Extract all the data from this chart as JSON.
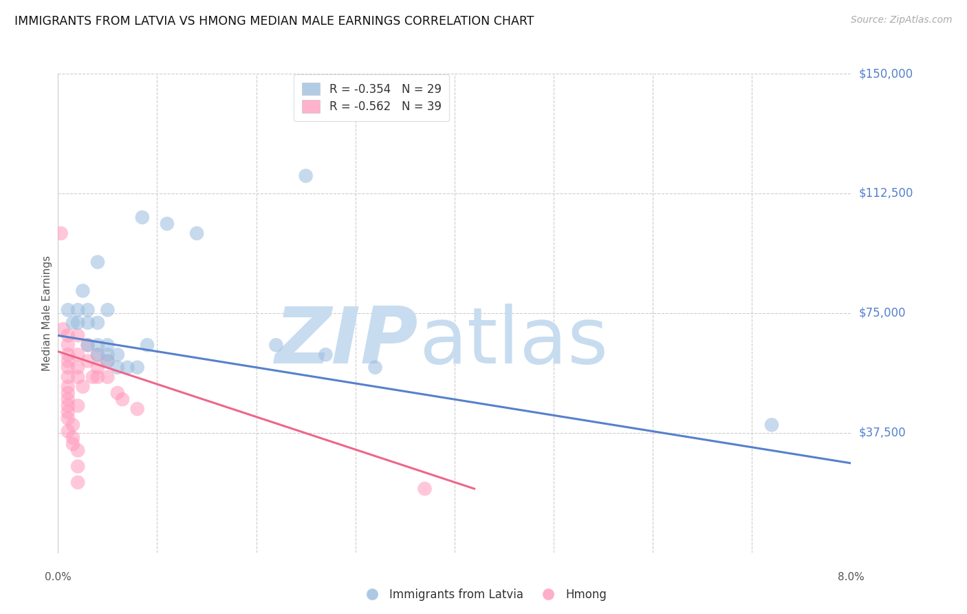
{
  "title": "IMMIGRANTS FROM LATVIA VS HMONG MEDIAN MALE EARNINGS CORRELATION CHART",
  "source": "Source: ZipAtlas.com",
  "ylabel": "Median Male Earnings",
  "y_ticks": [
    0,
    37500,
    75000,
    112500,
    150000
  ],
  "y_tick_labels": [
    "",
    "$37,500",
    "$75,000",
    "$112,500",
    "$150,000"
  ],
  "x_min": 0.0,
  "x_max": 0.08,
  "y_min": 0,
  "y_max": 150000,
  "legend_blue_r": "-0.354",
  "legend_blue_n": "29",
  "legend_pink_r": "-0.562",
  "legend_pink_n": "39",
  "legend_blue_label": "Immigrants from Latvia",
  "legend_pink_label": "Hmong",
  "blue_color": "#99BBDD",
  "pink_color": "#FF99BB",
  "blue_line_color": "#5580CC",
  "pink_line_color": "#EE6688",
  "blue_scatter": [
    [
      0.001,
      76000
    ],
    [
      0.0015,
      72000
    ],
    [
      0.002,
      76000
    ],
    [
      0.002,
      72000
    ],
    [
      0.0025,
      82000
    ],
    [
      0.003,
      76000
    ],
    [
      0.003,
      72000
    ],
    [
      0.003,
      65000
    ],
    [
      0.004,
      91000
    ],
    [
      0.004,
      72000
    ],
    [
      0.004,
      65000
    ],
    [
      0.004,
      62000
    ],
    [
      0.005,
      76000
    ],
    [
      0.005,
      65000
    ],
    [
      0.005,
      62000
    ],
    [
      0.005,
      60000
    ],
    [
      0.006,
      62000
    ],
    [
      0.006,
      58000
    ],
    [
      0.0085,
      105000
    ],
    [
      0.007,
      58000
    ],
    [
      0.008,
      58000
    ],
    [
      0.009,
      65000
    ],
    [
      0.011,
      103000
    ],
    [
      0.014,
      100000
    ],
    [
      0.025,
      118000
    ],
    [
      0.022,
      65000
    ],
    [
      0.027,
      62000
    ],
    [
      0.032,
      58000
    ],
    [
      0.072,
      40000
    ]
  ],
  "pink_scatter": [
    [
      0.0003,
      100000
    ],
    [
      0.0005,
      70000
    ],
    [
      0.001,
      68000
    ],
    [
      0.001,
      65000
    ],
    [
      0.001,
      62000
    ],
    [
      0.001,
      60000
    ],
    [
      0.001,
      58000
    ],
    [
      0.001,
      55000
    ],
    [
      0.001,
      52000
    ],
    [
      0.001,
      50000
    ],
    [
      0.001,
      48000
    ],
    [
      0.001,
      46000
    ],
    [
      0.001,
      44000
    ],
    [
      0.001,
      42000
    ],
    [
      0.0015,
      40000
    ],
    [
      0.001,
      38000
    ],
    [
      0.0015,
      36000
    ],
    [
      0.0015,
      34000
    ],
    [
      0.002,
      68000
    ],
    [
      0.002,
      62000
    ],
    [
      0.002,
      58000
    ],
    [
      0.002,
      55000
    ],
    [
      0.0025,
      52000
    ],
    [
      0.002,
      46000
    ],
    [
      0.003,
      65000
    ],
    [
      0.003,
      60000
    ],
    [
      0.0035,
      55000
    ],
    [
      0.004,
      62000
    ],
    [
      0.004,
      58000
    ],
    [
      0.004,
      55000
    ],
    [
      0.005,
      60000
    ],
    [
      0.005,
      55000
    ],
    [
      0.006,
      50000
    ],
    [
      0.0065,
      48000
    ],
    [
      0.008,
      45000
    ],
    [
      0.002,
      32000
    ],
    [
      0.002,
      27000
    ],
    [
      0.037,
      20000
    ],
    [
      0.002,
      22000
    ]
  ],
  "blue_line_x": [
    0.0,
    0.08
  ],
  "blue_line_y": [
    68000,
    28000
  ],
  "pink_line_x": [
    0.0,
    0.042
  ],
  "pink_line_y": [
    63000,
    20000
  ],
  "watermark_zip": "ZIP",
  "watermark_atlas": "atlas"
}
